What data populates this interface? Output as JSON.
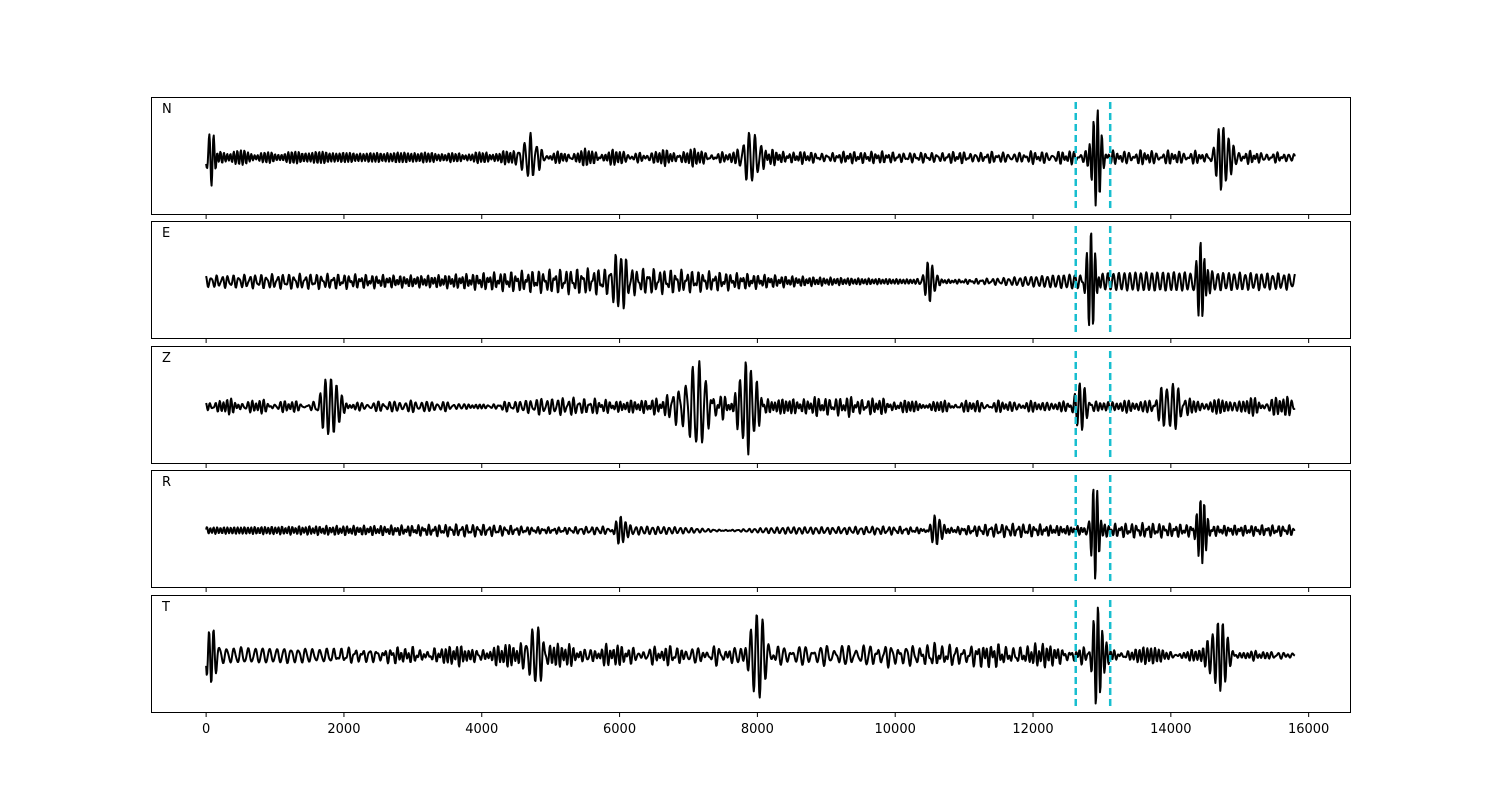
{
  "chart_data": {
    "type": "line",
    "xlim": [
      -800,
      16600
    ],
    "x_ticks": [
      0,
      2000,
      4000,
      6000,
      8000,
      10000,
      12000,
      14000,
      16000
    ],
    "x_tick_labels": [
      "0",
      "2000",
      "4000",
      "6000",
      "8000",
      "10000",
      "12000",
      "14000",
      "16000"
    ],
    "signal_x_range": [
      0,
      15800
    ],
    "markers": {
      "x": [
        12620,
        13120
      ],
      "color": "#17becf",
      "style": "dashed"
    },
    "line_color": "#000000",
    "panels": [
      {
        "label": "N",
        "seed": 11,
        "events": [
          {
            "x": 12920,
            "amp": 1.0,
            "w": 80,
            "f": 55
          },
          {
            "x": 14750,
            "amp": 0.6,
            "w": 140,
            "f": 55
          },
          {
            "x": 7900,
            "amp": 0.5,
            "w": 150,
            "f": 45
          },
          {
            "x": 60,
            "amp": 0.45,
            "w": 90,
            "f": 45
          },
          {
            "x": 4700,
            "amp": 0.4,
            "w": 150,
            "f": 45
          }
        ]
      },
      {
        "label": "E",
        "seed": 23,
        "events": [
          {
            "x": 12850,
            "amp": 0.8,
            "w": 90,
            "f": 60
          },
          {
            "x": 14450,
            "amp": 0.7,
            "w": 80,
            "f": 60
          },
          {
            "x": 10500,
            "amp": 0.35,
            "w": 100,
            "f": 50
          },
          {
            "x": 6000,
            "amp": 0.35,
            "w": 120,
            "f": 50
          }
        ]
      },
      {
        "label": "Z",
        "seed": 37,
        "events": [
          {
            "x": 7850,
            "amp": 0.85,
            "w": 160,
            "f": 50
          },
          {
            "x": 7100,
            "amp": 0.7,
            "w": 250,
            "f": 45
          },
          {
            "x": 1800,
            "amp": 0.6,
            "w": 160,
            "f": 50
          },
          {
            "x": 14000,
            "amp": 0.4,
            "w": 200,
            "f": 50
          },
          {
            "x": 12700,
            "amp": 0.4,
            "w": 120,
            "f": 50
          }
        ]
      },
      {
        "label": "R",
        "seed": 53,
        "events": [
          {
            "x": 12900,
            "amp": 1.0,
            "w": 70,
            "f": 55
          },
          {
            "x": 14450,
            "amp": 0.65,
            "w": 80,
            "f": 60
          },
          {
            "x": 10600,
            "amp": 0.3,
            "w": 100,
            "f": 50
          },
          {
            "x": 6000,
            "amp": 0.3,
            "w": 100,
            "f": 50
          }
        ]
      },
      {
        "label": "T",
        "seed": 71,
        "events": [
          {
            "x": 12920,
            "amp": 0.9,
            "w": 90,
            "f": 55
          },
          {
            "x": 14700,
            "amp": 0.6,
            "w": 150,
            "f": 55
          },
          {
            "x": 8000,
            "amp": 0.6,
            "w": 150,
            "f": 45
          },
          {
            "x": 60,
            "amp": 0.55,
            "w": 80,
            "f": 45
          },
          {
            "x": 4800,
            "amp": 0.5,
            "w": 150,
            "f": 45
          }
        ]
      }
    ]
  }
}
